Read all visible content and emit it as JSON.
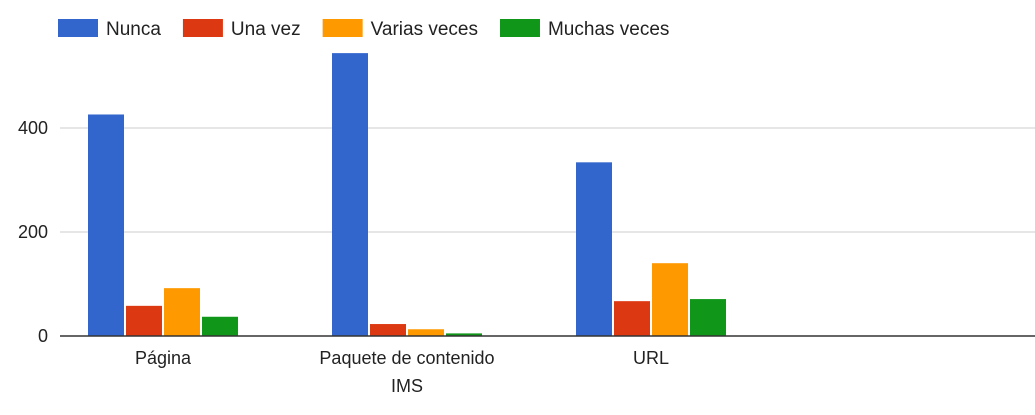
{
  "chart_data": {
    "type": "bar",
    "categories": [
      [
        "Página"
      ],
      [
        "Paquete de contenido",
        "IMS"
      ],
      [
        "URL"
      ],
      [
        ""
      ]
    ],
    "series": [
      {
        "name": "Nunca",
        "color": "#3366cc",
        "values": [
          426,
          544,
          334,
          null
        ]
      },
      {
        "name": "Una vez",
        "color": "#dc3912",
        "values": [
          58,
          23,
          67,
          null
        ]
      },
      {
        "name": "Varias veces",
        "color": "#ff9900",
        "values": [
          92,
          13,
          140,
          null
        ]
      },
      {
        "name": "Muchas veces",
        "color": "#109618",
        "values": [
          37,
          5,
          71,
          null
        ]
      }
    ],
    "yticks": [
      0,
      200,
      400
    ],
    "ylim": [
      0,
      600
    ],
    "grid": true,
    "legend_position": "top",
    "title": "",
    "xlabel": "",
    "ylabel": ""
  }
}
